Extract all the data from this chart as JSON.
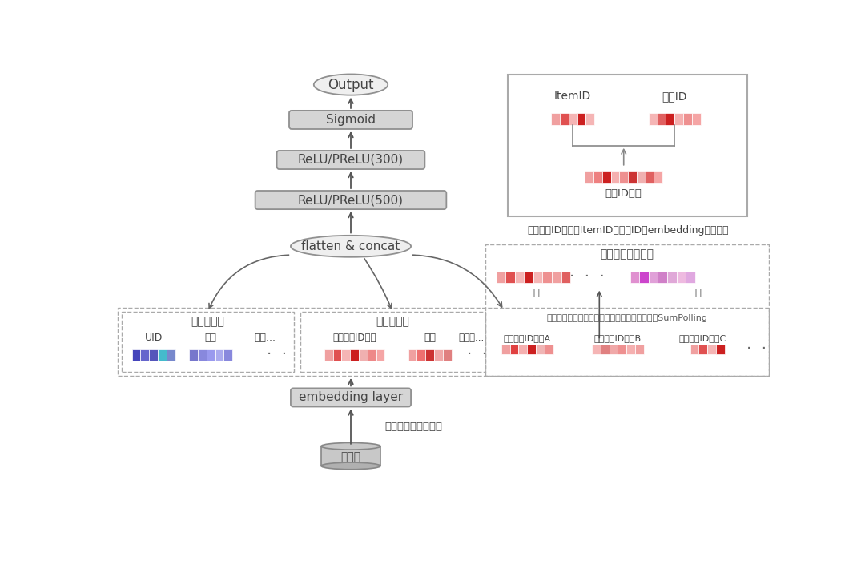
{
  "bg_color": "#ffffff",
  "output_label": "Output",
  "sigmoid_label": "Sigmoid",
  "relu300_label": "ReLU/PReLU(300)",
  "relu500_label": "ReLU/PReLU(500)",
  "flatten_label": "flatten & concat",
  "embedding_label": "embedding layer",
  "raw_data_label": "原数据",
  "bin_label": "分筱，清洗，哈希等",
  "user_vec_label": "总用户向量",
  "item_vec_label": "总商品向量",
  "hist_vec_label": "历史点击商品向量",
  "uid_label": "UID",
  "gender_label": "性别",
  "age_label": "年龄...",
  "cur_item_label": "当前商品ID向量",
  "price_label": "价格",
  "monthly_label": "月销量...",
  "hist_a_label": "历史商品ID向量A",
  "hist_b_label": "历史商品ID向量B",
  "hist_c_label": "历史商品ID向量C...",
  "front_label": "前",
  "back_label": "后",
  "itemid_label": "ItemID",
  "catid_label": "类目ID",
  "product_vec_label": "商品ID向量",
  "concat_note": "一个商品ID向量由ItemID和类目ID的embedding拼接而成",
  "hist_note": "历史点击商品向量前半部分直接保留，后半部分SumPolling",
  "blue_uid": [
    "#4444bb",
    "#6666cc",
    "#5555bb",
    "#44bbcc",
    "#7788cc"
  ],
  "blue_gender": [
    "#7777cc",
    "#8888dd",
    "#9999ee",
    "#aaaaee",
    "#8888dd"
  ],
  "red_cur": [
    "#f0a0a0",
    "#e05050",
    "#f5b5b5",
    "#cc2020",
    "#f0b0b0",
    "#ee8888",
    "#f5a5a5"
  ],
  "red_price": [
    "#f0a0a0",
    "#ee7070",
    "#cc3333",
    "#f0a8a8",
    "#e08080"
  ],
  "red_hist_front": [
    "#f0a0a0",
    "#e05050",
    "#f5b5b5",
    "#cc2020",
    "#f5b5b5",
    "#ee9090",
    "#f0a0a0",
    "#e06060"
  ],
  "pink_hist_back": [
    "#e090d0",
    "#cc44cc",
    "#e0a0d8",
    "#d080c8",
    "#e0a8d8",
    "#eebae0",
    "#e0a8e0"
  ],
  "red_ha": [
    "#f0a0a0",
    "#e04040",
    "#f5b0b0",
    "#cc2020",
    "#f0b5b5",
    "#ee9090"
  ],
  "red_hb": [
    "#f5b5b5",
    "#e08080",
    "#f0a8a8",
    "#ee9090",
    "#f5b0b0",
    "#f0a0a0"
  ],
  "red_item_top": [
    "#f0a0a0",
    "#e05050",
    "#f5b5b5",
    "#cc2020",
    "#f5b5b5"
  ],
  "red_cat_top": [
    "#f5b5b5",
    "#e06060",
    "#cc2020",
    "#f5b0b0",
    "#ee9090",
    "#f5a5a5"
  ],
  "red_combined": [
    "#f0a0a0",
    "#ee8080",
    "#cc2020",
    "#f5b0b0",
    "#ee9090",
    "#cc3333",
    "#f0b0b0",
    "#e06060",
    "#f5a5a5"
  ]
}
